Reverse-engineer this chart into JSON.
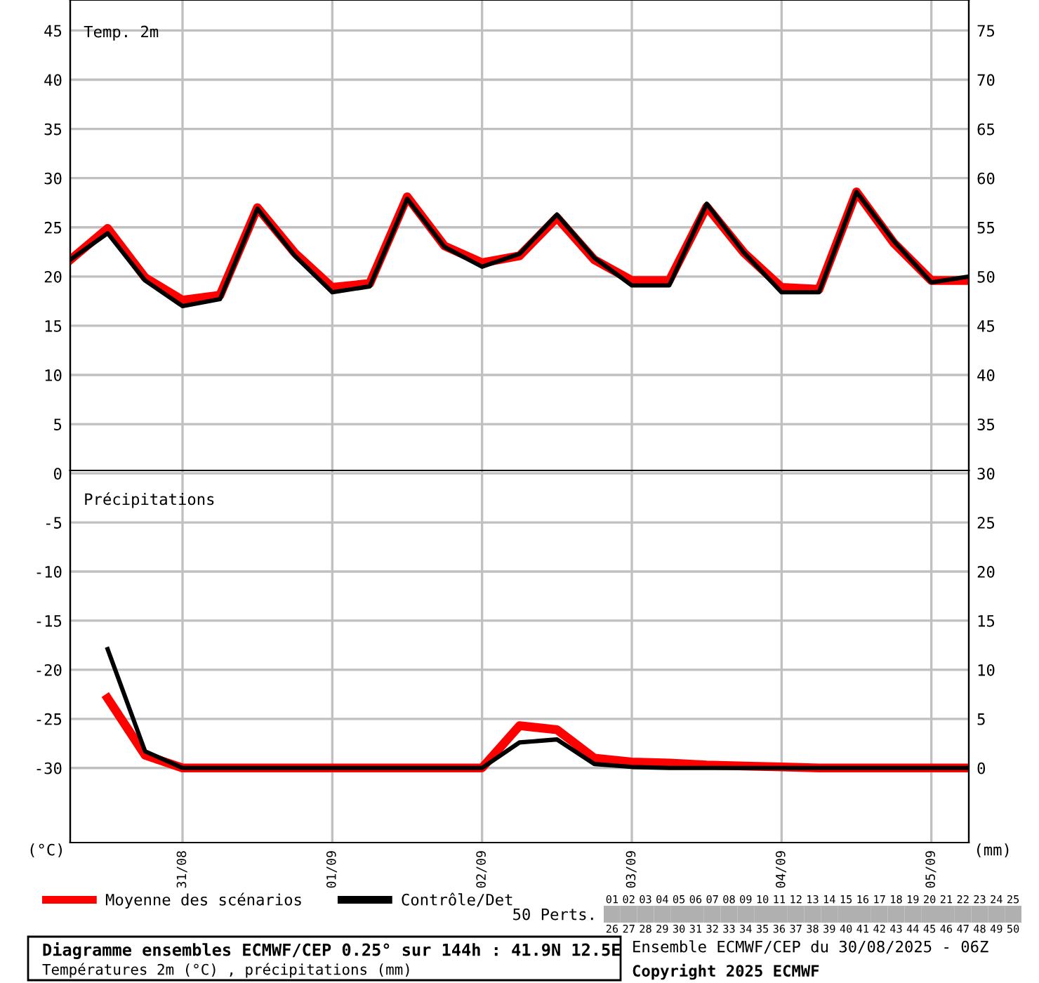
{
  "chart_data": [
    {
      "type": "line",
      "x": [
        "2025-08-30T06:00",
        "2025-08-30T12:00",
        "2025-08-30T18:00",
        "2025-08-31T00:00",
        "2025-08-31T06:00",
        "2025-08-31T12:00",
        "2025-08-31T18:00",
        "2025-09-01T00:00",
        "2025-09-01T06:00",
        "2025-09-01T12:00",
        "2025-09-01T18:00",
        "2025-09-02T00:00",
        "2025-09-02T06:00",
        "2025-09-02T12:00",
        "2025-09-02T18:00",
        "2025-09-03T00:00",
        "2025-09-03T06:00",
        "2025-09-03T12:00",
        "2025-09-03T18:00",
        "2025-09-04T00:00",
        "2025-09-04T06:00",
        "2025-09-04T12:00",
        "2025-09-04T18:00",
        "2025-09-05T00:00",
        "2025-09-05T06:00"
      ],
      "series": [
        {
          "color": "#ff0000",
          "values": [
            21.7,
            24.9,
            19.9,
            17.6,
            18.1,
            27.0,
            22.4,
            18.9,
            19.3,
            28.1,
            23.1,
            21.4,
            22.1,
            26.0,
            21.7,
            19.6,
            19.6,
            27.1,
            22.4,
            18.9,
            18.7,
            28.6,
            23.4,
            19.6,
            19.6
          ]
        },
        {
          "color": "#000000",
          "values": [
            21.7,
            24.4,
            19.6,
            17.0,
            17.7,
            26.9,
            22.1,
            18.4,
            19.0,
            27.9,
            23.0,
            21.0,
            22.3,
            26.3,
            21.9,
            19.1,
            19.1,
            27.4,
            22.4,
            18.4,
            18.4,
            28.6,
            23.6,
            19.4,
            20.0
          ]
        }
      ],
      "xlim": [
        "2025-08-30T06:00",
        "2025-09-05T06:00"
      ],
      "xticks": [
        {
          "value": "2025-08-31",
          "label": null
        },
        {
          "value": "2025-09-01",
          "label": null
        },
        {
          "value": "2025-09-02",
          "label": null
        },
        {
          "value": "2025-09-03",
          "label": null
        },
        {
          "value": "2025-09-04",
          "label": null
        },
        {
          "value": "2025-09-05",
          "label": null
        }
      ],
      "ylim": [
        0.3,
        48.1
      ],
      "yticks": [
        5,
        10,
        15,
        20,
        25,
        30,
        35,
        40,
        45
      ],
      "y2lim": [
        30.3,
        78.1
      ],
      "y2ticks": [
        35,
        40,
        45,
        50,
        55,
        60,
        65,
        70,
        75
      ],
      "tick_labels": "y",
      "grid": true,
      "marker": "none",
      "line_style": "solid",
      "annotations": [
        "Temp. 2m"
      ]
    },
    {
      "type": "line",
      "x": [
        "2025-08-30T12:00",
        "2025-08-30T18:00",
        "2025-08-31T00:00",
        "2025-08-31T06:00",
        "2025-08-31T12:00",
        "2025-08-31T18:00",
        "2025-09-01T00:00",
        "2025-09-01T06:00",
        "2025-09-01T12:00",
        "2025-09-01T18:00",
        "2025-09-02T00:00",
        "2025-09-02T06:00",
        "2025-09-02T12:00",
        "2025-09-02T18:00",
        "2025-09-03T00:00",
        "2025-09-03T06:00",
        "2025-09-03T12:00",
        "2025-09-03T18:00",
        "2025-09-04T00:00",
        "2025-09-04T06:00",
        "2025-09-04T12:00",
        "2025-09-04T18:00",
        "2025-09-05T00:00",
        "2025-09-05T06:00"
      ],
      "title": "Diagramme ensembles ECMWF/CEP 0.25° sur 144h : 41.9N 12.5E",
      "subtitle": "Températures 2m (°C) , précipitations (mm)",
      "ylabel": "(°C)",
      "y2label": "(mm)",
      "series": [
        {
          "name": "Moyenne des scénarios",
          "color": "#ff0000",
          "axis": "y2",
          "values": [
            7.1,
            1.3,
            0,
            0,
            0,
            0,
            0,
            0,
            0,
            0,
            0,
            4.3,
            3.9,
            1.0,
            0.6,
            0.5,
            0.3,
            0.2,
            0.1,
            0,
            0,
            0,
            0,
            0
          ]
        },
        {
          "name": "Contrôle/Det",
          "color": "#000000",
          "axis": "y2",
          "values": [
            12.1,
            1.7,
            0,
            0,
            0,
            0,
            0,
            0,
            0,
            0,
            0,
            2.6,
            2.9,
            0.4,
            0.1,
            0,
            0,
            0,
            0,
            0,
            0,
            0,
            0,
            0
          ]
        }
      ],
      "xlim": [
        "2025-08-30T06:00",
        "2025-09-05T06:00"
      ],
      "xticks": [
        {
          "value": "2025-08-31",
          "label": "31/08"
        },
        {
          "value": "2025-09-01",
          "label": "01/09"
        },
        {
          "value": "2025-09-02",
          "label": "02/09"
        },
        {
          "value": "2025-09-03",
          "label": "03/09"
        },
        {
          "value": "2025-09-04",
          "label": "04/09"
        },
        {
          "value": "2025-09-05",
          "label": "05/09"
        }
      ],
      "ylim": [
        -37.6,
        0.3
      ],
      "yticks": [
        -30,
        -25,
        -20,
        -15,
        -10,
        -5,
        0
      ],
      "y2lim": [
        -7.6,
        30.3
      ],
      "y2ticks": [
        0,
        5,
        10,
        15,
        20,
        25,
        30
      ],
      "grid": true,
      "legend": "bottom",
      "marker": "none",
      "line_style": "solid",
      "annotations": [
        "Précipitations",
        "Ensemble ECMWF/CEP du 30/08/2025 - 06Z",
        "Copyright 2025 ECMWF",
        "50 Perts.",
        "01",
        "02",
        "03",
        "04",
        "05",
        "06",
        "07",
        "08",
        "09",
        "10",
        "11",
        "12",
        "13",
        "14",
        "15",
        "16",
        "17",
        "18",
        "19",
        "20",
        "21",
        "22",
        "23",
        "24",
        "25",
        "26",
        "27",
        "28",
        "29",
        "30",
        "31",
        "32",
        "33",
        "34",
        "35",
        "36",
        "37",
        "38",
        "39",
        "40",
        "41",
        "42",
        "43",
        "44",
        "45",
        "46",
        "47",
        "48",
        "49",
        "50"
      ]
    }
  ]
}
